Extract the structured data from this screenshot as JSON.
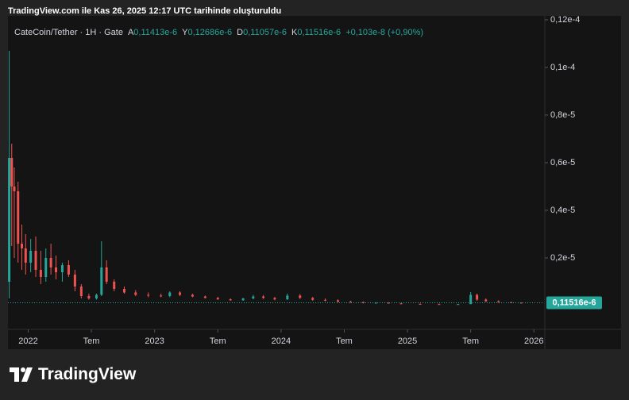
{
  "chart_data": {
    "type": "candlestick",
    "attribution": "TradingView.com ile Kas 26, 2025 12:17 UTC tarihinde oluşturuldu",
    "symbol": "CateCoin/Tether · 1H · Gate",
    "legend_ohlc": [
      {
        "label": "A",
        "value": "0,11413e-6"
      },
      {
        "label": "Y",
        "value": "0,12686e-6"
      },
      {
        "label": "D",
        "value": "0,11057e-6"
      },
      {
        "label": "K",
        "value": "0,11516e-6"
      }
    ],
    "change": "+0,103e-8 (+0,90%)",
    "last_price": {
      "value": 1.1516e-07,
      "label": "0,11516e-6"
    },
    "up_color": "#26a69a",
    "down_color": "#ef5350",
    "x": [
      2021.85,
      2021.87,
      2021.89,
      2021.92,
      2021.95,
      2021.98,
      2022.02,
      2022.06,
      2022.1,
      2022.14,
      2022.18,
      2022.22,
      2022.27,
      2022.32,
      2022.37,
      2022.42,
      2022.48,
      2022.54,
      2022.58,
      2022.62,
      2022.68,
      2022.76,
      2022.85,
      2022.95,
      2023.05,
      2023.12,
      2023.2,
      2023.3,
      2023.4,
      2023.5,
      2023.6,
      2023.7,
      2023.78,
      2023.86,
      2023.95,
      2024.05,
      2024.15,
      2024.25,
      2024.35,
      2024.45,
      2024.55,
      2024.65,
      2024.75,
      2024.85,
      2024.95,
      2025.1,
      2025.25,
      2025.4,
      2025.5,
      2025.55,
      2025.62,
      2025.72,
      2025.82,
      2025.9
    ],
    "open": [
      1e-06,
      6.2e-06,
      5e-06,
      4.8e-06,
      2.6e-06,
      2.4e-06,
      1.8e-06,
      2.3e-06,
      1.5e-06,
      1.2e-06,
      2e-06,
      1.6e-06,
      1.4e-06,
      1.7e-06,
      1.3e-06,
      8e-07,
      4e-07,
      3e-07,
      4.5e-07,
      1.6e-06,
      1e-06,
      7e-07,
      5.5e-07,
      4.5e-07,
      4.2e-07,
      4e-07,
      5.5e-07,
      4.5e-07,
      3.8e-07,
      3.2e-07,
      2.6e-07,
      2.2e-07,
      3e-07,
      3.8e-07,
      3.2e-07,
      2.6e-07,
      4.2e-07,
      3.2e-07,
      2.4e-07,
      2.2e-07,
      1.6e-07,
      1.4e-07,
      1e-07,
      1.2e-07,
      9e-08,
      7e-08,
      6e-08,
      5e-08,
      6e-08,
      4.5e-07,
      2.5e-07,
      1.8e-07,
      1.4e-07,
      1.2e-07
    ],
    "high": [
      1.07e-05,
      6.8e-06,
      5.8e-06,
      5.2e-06,
      3.4e-06,
      3e-06,
      2.8e-06,
      2.9e-06,
      2.3e-06,
      2.4e-06,
      2.6e-06,
      2.1e-06,
      1.8e-06,
      1.9e-06,
      1.5e-06,
      9e-07,
      5e-07,
      5e-07,
      2.7e-06,
      1.9e-06,
      1.1e-06,
      8e-07,
      6.5e-07,
      5.5e-07,
      5e-07,
      6e-07,
      6e-07,
      5e-07,
      4.2e-07,
      3.6e-07,
      3e-07,
      3.2e-07,
      4.5e-07,
      4.4e-07,
      3.6e-07,
      5e-07,
      4.8e-07,
      3.6e-07,
      3e-07,
      2.6e-07,
      2e-07,
      1.7e-07,
      1.4e-07,
      1.4e-07,
      1.1e-07,
      9e-08,
      8e-08,
      7e-08,
      5.7e-07,
      5e-07,
      3e-07,
      2.2e-07,
      1.6e-07,
      1.3e-07
    ],
    "low": [
      3e-07,
      2.5e-06,
      2e-06,
      1.8e-06,
      1.5e-06,
      1.3e-06,
      1.4e-06,
      1.2e-06,
      9e-07,
      1e-06,
      1.3e-06,
      1.1e-06,
      1e-06,
      1.2e-06,
      6e-07,
      3e-07,
      2.5e-07,
      2.5e-07,
      4e-07,
      9e-07,
      6e-07,
      5e-07,
      4e-07,
      3.5e-07,
      3.5e-07,
      3.5e-07,
      4e-07,
      3.5e-07,
      3e-07,
      2.4e-07,
      2e-07,
      2e-07,
      2.6e-07,
      2.8e-07,
      2.2e-07,
      2.4e-07,
      2.8e-07,
      2e-07,
      1.8e-07,
      1.4e-07,
      1.2e-07,
      9e-08,
      8e-08,
      8e-08,
      6e-08,
      5e-08,
      4e-08,
      4e-08,
      6e-08,
      2e-07,
      1.5e-07,
      1.2e-07,
      1e-07,
      1e-07
    ],
    "close": [
      6.2e-06,
      5e-06,
      4.8e-06,
      2.6e-06,
      2.4e-06,
      1.8e-06,
      2.3e-06,
      1.5e-06,
      1.2e-06,
      2e-06,
      1.6e-06,
      1.4e-06,
      1.7e-06,
      1.3e-06,
      8e-07,
      4e-07,
      3e-07,
      4.5e-07,
      1.6e-06,
      1e-06,
      7e-07,
      5.5e-07,
      4.5e-07,
      4.2e-07,
      4e-07,
      5.5e-07,
      4.5e-07,
      3.8e-07,
      3.2e-07,
      2.6e-07,
      2.2e-07,
      3e-07,
      3.8e-07,
      3.2e-07,
      2.6e-07,
      4.2e-07,
      3.2e-07,
      2.4e-07,
      2.2e-07,
      1.6e-07,
      1.4e-07,
      1e-07,
      1.2e-07,
      9e-08,
      7e-08,
      6e-08,
      5e-08,
      6e-08,
      4.5e-07,
      2.5e-07,
      1.8e-07,
      1.4e-07,
      1.2e-07,
      1.1516e-07
    ],
    "xlim": [
      2021.84,
      2026.08
    ],
    "xticks": [
      {
        "value": 2022,
        "label": "2022"
      },
      {
        "value": 2022.5,
        "label": "Tem"
      },
      {
        "value": 2023,
        "label": "2023"
      },
      {
        "value": 2023.5,
        "label": "Tem"
      },
      {
        "value": 2024,
        "label": "2024"
      },
      {
        "value": 2024.5,
        "label": "Tem"
      },
      {
        "value": 2025,
        "label": "2025"
      },
      {
        "value": 2025.5,
        "label": "Tem"
      },
      {
        "value": 2026,
        "label": "2026"
      }
    ],
    "ylim": [
      -1e-06,
      1.21667e-05
    ],
    "yticks": [
      {
        "value": 2e-06,
        "label": "0,2e-5"
      },
      {
        "value": 4e-06,
        "label": "0,4e-5"
      },
      {
        "value": 6e-06,
        "label": "0,6e-5"
      },
      {
        "value": 8e-06,
        "label": "0,8e-5"
      },
      {
        "value": 1e-05,
        "label": "0,1e-4"
      },
      {
        "value": 1.2e-05,
        "label": "0,12e-4"
      }
    ],
    "logo": "TradingView"
  }
}
